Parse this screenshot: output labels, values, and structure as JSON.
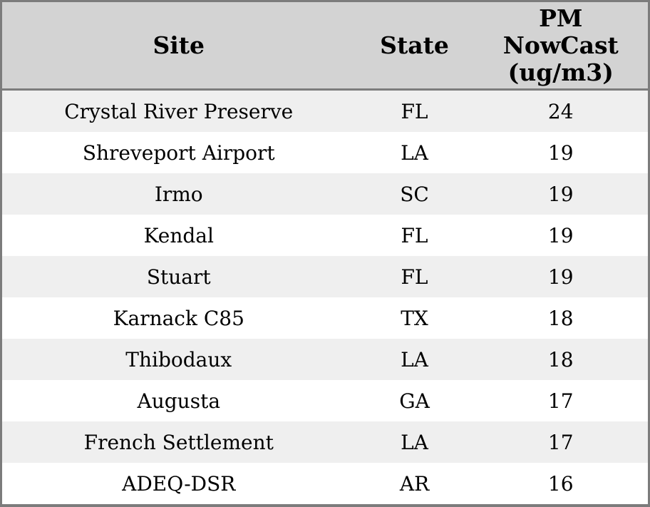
{
  "colors": {
    "border": "#7c7c7c",
    "header_bg": "#d3d3d3",
    "stripe_row_bg": "#efefef",
    "plain_row_bg": "#ffffff",
    "text": "#000000"
  },
  "chart_data": {
    "type": "table",
    "title": "",
    "columns": [
      "Site",
      "State",
      "PM NowCast (ug/m3)"
    ],
    "columns_display": [
      "Site",
      "State",
      "PM\nNowCast\n(ug/m3)"
    ],
    "rows": [
      [
        "Crystal River Preserve",
        "FL",
        24
      ],
      [
        "Shreveport Airport",
        "LA",
        19
      ],
      [
        "Irmo",
        "SC",
        19
      ],
      [
        "Kendal",
        "FL",
        19
      ],
      [
        "Stuart",
        "FL",
        19
      ],
      [
        "Karnack C85",
        "TX",
        18
      ],
      [
        "Thibodaux",
        "LA",
        18
      ],
      [
        "Augusta",
        "GA",
        17
      ],
      [
        "French Settlement",
        "LA",
        17
      ],
      [
        "ADEQ-DSR",
        "AR",
        16
      ]
    ]
  }
}
